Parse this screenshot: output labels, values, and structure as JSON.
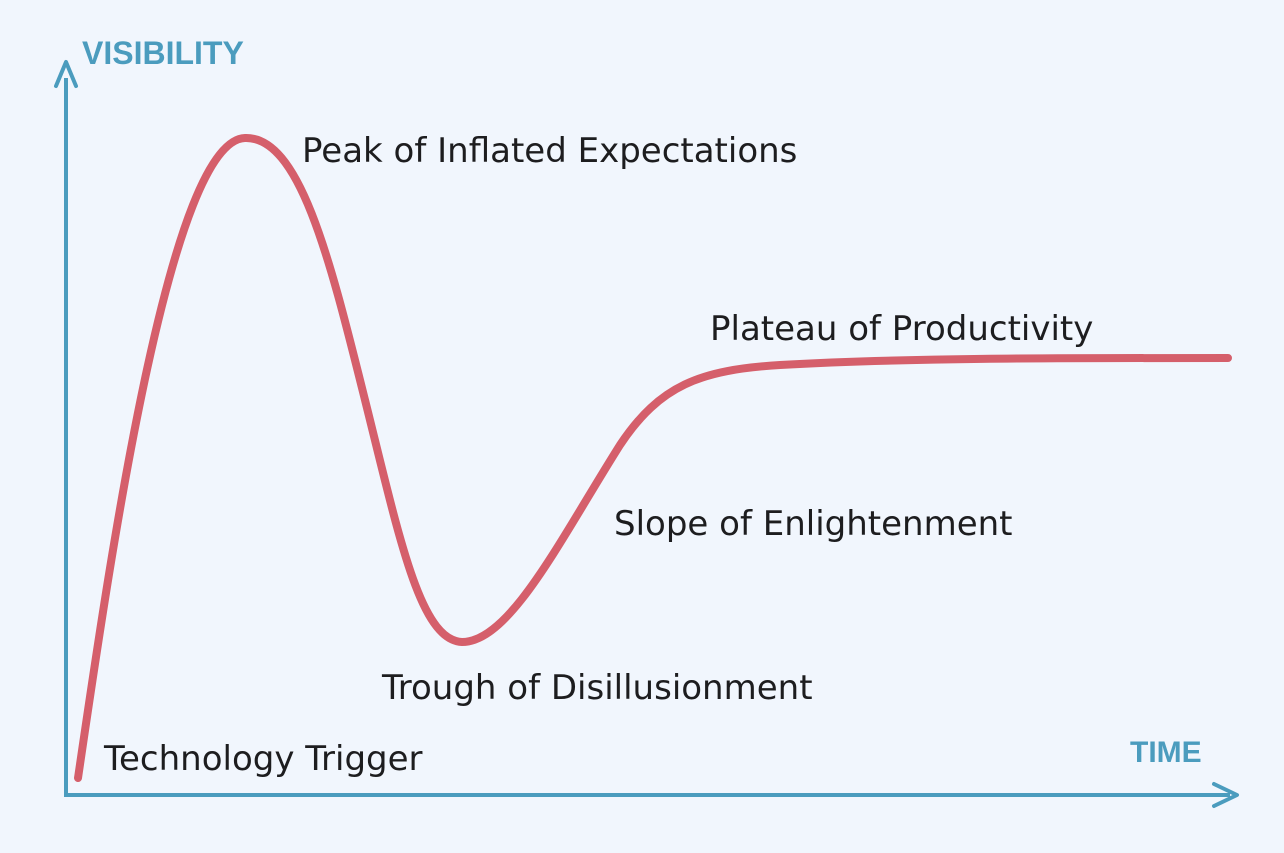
{
  "diagram": {
    "axes": {
      "y_label": "VISIBILITY",
      "x_label": "TIME"
    },
    "phases": [
      {
        "id": "technology-trigger",
        "label": "Technology Trigger"
      },
      {
        "id": "peak",
        "label": "Peak of Inflated Expectations"
      },
      {
        "id": "trough",
        "label": "Trough of Disillusionment"
      },
      {
        "id": "slope",
        "label": "Slope of Enlightenment"
      },
      {
        "id": "plateau",
        "label": "Plateau of Productivity"
      }
    ],
    "colors": {
      "background": "#f1f6fd",
      "axis": "#4b9cbe",
      "curve": "#d55f6b",
      "label_text": "#1d1d1f"
    }
  }
}
